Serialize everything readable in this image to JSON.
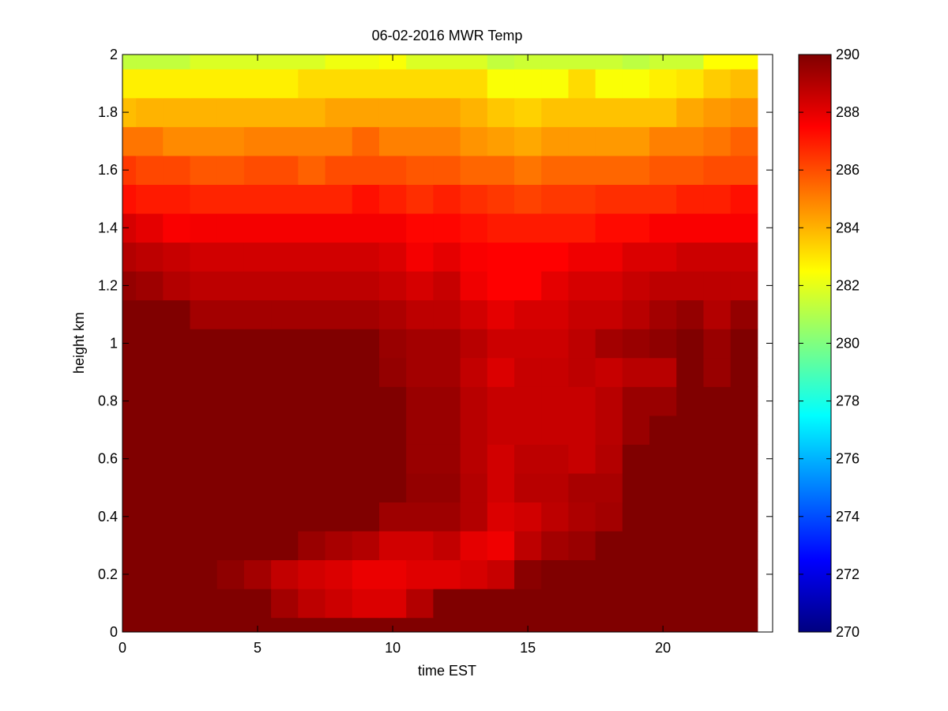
{
  "chart_data": {
    "type": "heatmap",
    "title": "06-02-2016 MWR Temp",
    "x_label": "time EST",
    "y_label": "height km",
    "colormap": "jet",
    "clim": [
      270,
      290
    ],
    "x": [
      0,
      1,
      2,
      3,
      4,
      5,
      6,
      7,
      8,
      9,
      10,
      11,
      12,
      13,
      14,
      15,
      16,
      17,
      18,
      19,
      20,
      21,
      22,
      23
    ],
    "y": [
      0,
      0.1,
      0.2,
      0.3,
      0.4,
      0.5,
      0.6,
      0.7,
      0.8,
      0.9,
      1,
      1.1,
      1.2,
      1.3,
      1.4,
      1.5,
      1.6,
      1.7,
      1.8,
      1.9,
      2
    ],
    "z": [
      [
        290,
        290,
        290,
        290,
        290,
        290,
        290,
        290,
        290,
        290,
        290,
        290,
        290,
        290,
        290,
        290,
        290,
        290,
        290,
        290,
        290,
        290,
        290,
        290
      ],
      [
        290,
        290,
        290,
        290,
        290,
        290,
        289.3,
        288.8,
        288.5,
        288.2,
        288.2,
        289.0,
        290,
        290,
        290,
        290,
        290,
        290,
        290,
        290,
        290,
        290,
        290,
        290
      ],
      [
        290,
        290,
        290,
        290,
        289.7,
        289.3,
        288.7,
        288.4,
        288.2,
        287.9,
        287.9,
        288.1,
        288.1,
        288.3,
        288.6,
        289.8,
        290,
        290,
        290,
        290,
        290,
        290,
        290,
        290
      ],
      [
        290,
        290,
        290,
        290,
        290,
        290,
        290,
        289.5,
        289.2,
        289.0,
        288.4,
        288.4,
        288.7,
        288.0,
        287.8,
        288.8,
        289.3,
        289.5,
        290,
        290,
        290,
        290,
        290,
        290
      ],
      [
        290,
        290,
        290,
        290,
        290,
        290,
        290,
        290,
        290,
        290,
        289.4,
        289.4,
        289.4,
        289.0,
        288.2,
        288.4,
        288.8,
        289.1,
        289.3,
        290,
        290,
        290,
        290,
        290
      ],
      [
        290,
        290,
        290,
        290,
        290,
        290,
        290,
        290,
        290,
        290,
        290,
        289.6,
        289.6,
        289.0,
        288.4,
        288.9,
        288.9,
        289.2,
        289.2,
        290,
        290,
        290,
        290,
        290
      ],
      [
        290,
        290,
        290,
        290,
        290,
        290,
        290,
        290,
        290,
        290,
        290,
        289.5,
        289.5,
        288.9,
        288.4,
        288.8,
        288.8,
        288.6,
        289.0,
        290,
        290,
        290,
        290,
        290
      ],
      [
        290,
        290,
        290,
        290,
        290,
        290,
        290,
        290,
        290,
        290,
        290,
        289.5,
        289.5,
        288.9,
        288.6,
        288.6,
        288.6,
        288.6,
        288.9,
        289.5,
        290,
        290,
        290,
        290
      ],
      [
        290,
        290,
        290,
        290,
        290,
        290,
        290,
        290,
        290,
        290,
        290,
        289.5,
        289.5,
        288.9,
        288.6,
        288.6,
        288.6,
        288.6,
        288.9,
        289.5,
        289.5,
        290,
        290,
        290
      ],
      [
        290,
        290,
        290,
        290,
        290,
        290,
        290,
        290,
        290,
        290,
        289.6,
        289.3,
        289.3,
        288.7,
        288.2,
        288.6,
        288.6,
        288.8,
        288.6,
        288.9,
        288.9,
        290,
        289.5,
        290
      ],
      [
        290,
        290,
        290,
        290,
        290,
        290,
        290,
        290,
        290,
        290,
        289.5,
        289.3,
        289.3,
        288.9,
        288.5,
        288.5,
        288.5,
        288.8,
        289.3,
        289.5,
        289.7,
        290,
        289.5,
        290
      ],
      [
        290,
        290,
        290,
        289.3,
        289.3,
        289.3,
        289.3,
        289.3,
        289.3,
        289.3,
        289.1,
        288.8,
        288.8,
        288.4,
        288.0,
        288.3,
        288.3,
        288.6,
        288.6,
        288.9,
        289.3,
        289.6,
        289.0,
        289.6
      ],
      [
        289.6,
        289.4,
        289.0,
        288.8,
        288.8,
        288.8,
        288.8,
        288.8,
        288.8,
        288.8,
        288.6,
        288.3,
        288.6,
        287.8,
        287.5,
        287.5,
        288.0,
        288.3,
        288.3,
        288.6,
        288.8,
        288.8,
        288.8,
        288.8
      ],
      [
        289.0,
        288.8,
        288.6,
        288.4,
        288.4,
        288.4,
        288.4,
        288.4,
        288.4,
        288.4,
        288.2,
        287.7,
        288.0,
        287.6,
        287.5,
        287.5,
        287.5,
        287.8,
        287.8,
        288.2,
        288.2,
        288.5,
        288.5,
        288.5
      ],
      [
        288.3,
        288.0,
        287.6,
        287.7,
        287.7,
        287.7,
        287.7,
        287.7,
        287.7,
        287.7,
        287.7,
        287.4,
        287.4,
        287.2,
        287.0,
        287.0,
        287.0,
        287.0,
        287.3,
        287.3,
        287.6,
        287.6,
        287.6,
        287.6
      ],
      [
        287.2,
        287.0,
        287.0,
        286.8,
        286.8,
        286.8,
        286.8,
        286.8,
        286.8,
        287.2,
        286.9,
        286.6,
        286.9,
        286.6,
        286.4,
        286.2,
        286.4,
        286.4,
        286.6,
        286.6,
        286.6,
        286.9,
        286.9,
        287.2
      ],
      [
        286.4,
        286.1,
        286.1,
        285.8,
        285.8,
        286.0,
        286.0,
        285.6,
        286.0,
        286.0,
        286.0,
        285.8,
        285.8,
        285.5,
        285.5,
        285.2,
        285.5,
        285.5,
        285.5,
        285.5,
        285.8,
        285.8,
        286.0,
        286.0
      ],
      [
        285.2,
        285.2,
        284.8,
        284.8,
        284.8,
        285.0,
        285.0,
        285.0,
        285.0,
        285.5,
        285.0,
        285.0,
        285.0,
        284.6,
        284.4,
        284.2,
        284.5,
        284.5,
        284.5,
        284.5,
        285.0,
        285.0,
        285.2,
        285.6
      ],
      [
        283.8,
        284.0,
        284.0,
        284.0,
        284.0,
        284.0,
        284.0,
        284.0,
        284.3,
        284.3,
        284.3,
        284.3,
        284.3,
        284.0,
        283.6,
        283.4,
        283.7,
        283.7,
        283.7,
        283.7,
        283.7,
        284.2,
        284.5,
        284.7
      ],
      [
        282.8,
        282.8,
        282.8,
        282.8,
        282.8,
        282.8,
        282.8,
        283.2,
        283.2,
        283.2,
        283.2,
        283.2,
        283.2,
        283.2,
        282.4,
        282.4,
        282.4,
        283.2,
        282.4,
        282.4,
        282.8,
        283.0,
        283.5,
        283.8
      ],
      [
        281.3,
        281.3,
        281.3,
        281.8,
        281.8,
        281.8,
        281.8,
        281.8,
        282.2,
        282.2,
        282.4,
        281.8,
        281.8,
        281.8,
        281.3,
        281.5,
        281.5,
        281.5,
        281.5,
        281.2,
        281.5,
        281.5,
        282.5,
        282.5
      ]
    ],
    "xlim": [
      0,
      24
    ],
    "xticks": [
      0,
      5,
      10,
      15,
      20
    ],
    "ylim": [
      0,
      2
    ],
    "yticks": [
      0,
      0.2,
      0.4,
      0.6,
      0.8,
      1,
      1.2,
      1.4,
      1.6,
      1.8,
      2
    ],
    "colorbar_ticks": [
      270,
      272,
      274,
      276,
      278,
      280,
      282,
      284,
      286,
      288,
      290
    ]
  }
}
